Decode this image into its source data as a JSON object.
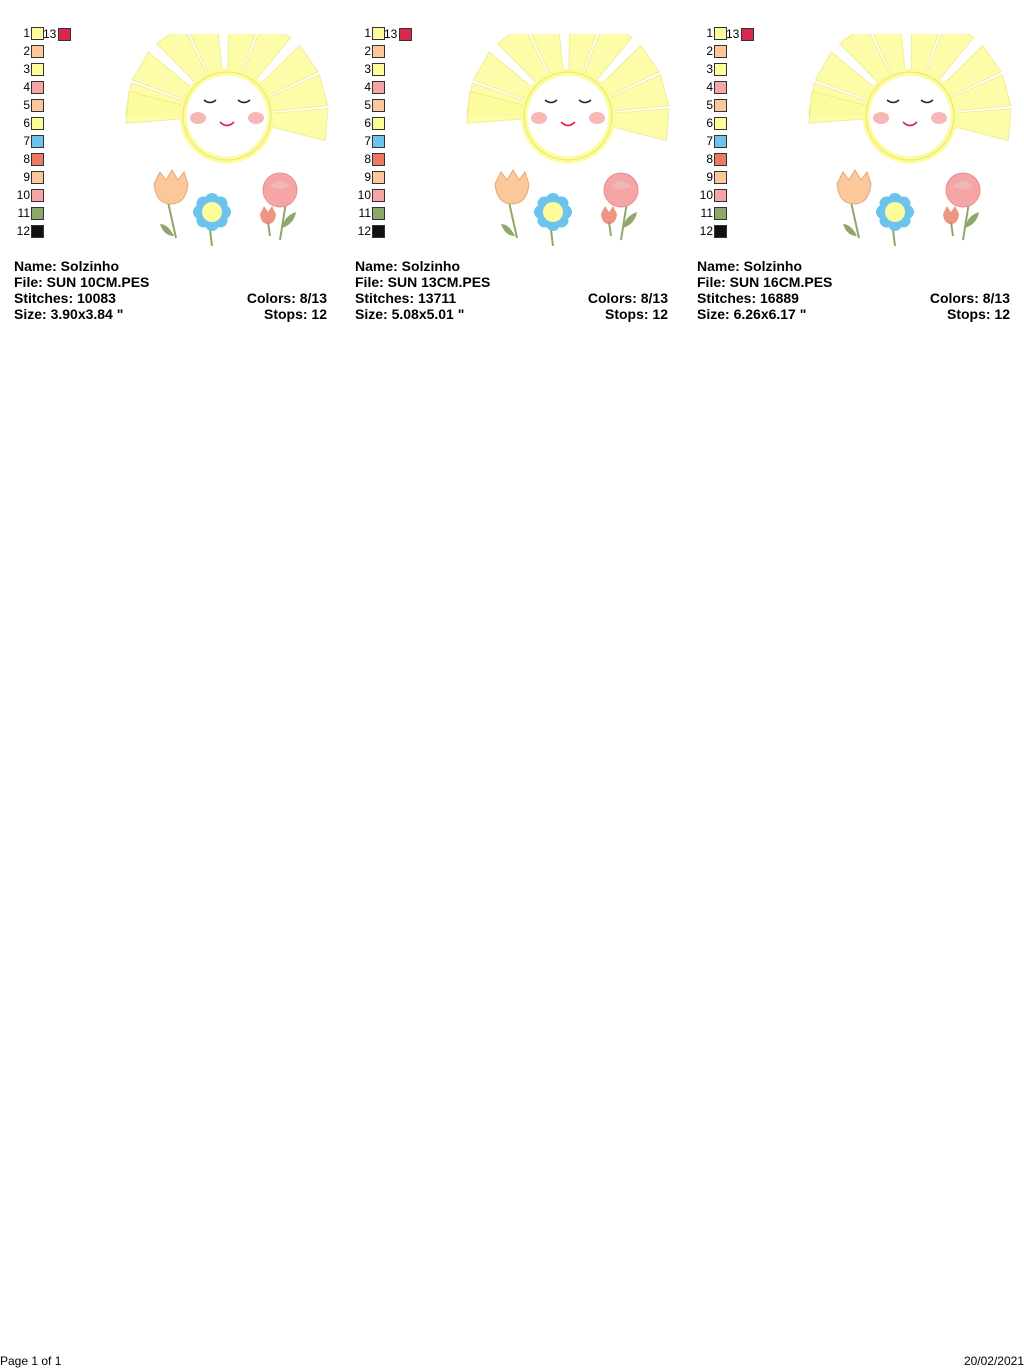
{
  "colors": {
    "yellow": "#fdfc9b",
    "peach": "#fcc89b",
    "pink": "#f5a5a5",
    "blue": "#6cc3ee",
    "salmon": "#ea7a64",
    "green": "#8ea86a",
    "black": "#111111",
    "red": "#d9264c"
  },
  "swatch_list": [
    {
      "num": "1",
      "color": "#fdfc9b"
    },
    {
      "num": "2",
      "color": "#fcc89b"
    },
    {
      "num": "3",
      "color": "#fdfc9b"
    },
    {
      "num": "4",
      "color": "#f5a5a5"
    },
    {
      "num": "5",
      "color": "#fcc89b"
    },
    {
      "num": "6",
      "color": "#fdfc9b"
    },
    {
      "num": "7",
      "color": "#6cc3ee"
    },
    {
      "num": "8",
      "color": "#ea7a64"
    },
    {
      "num": "9",
      "color": "#fcc89b"
    },
    {
      "num": "10",
      "color": "#f5a5a5"
    },
    {
      "num": "11",
      "color": "#8ea86a"
    },
    {
      "num": "12",
      "color": "#111111"
    }
  ],
  "swatch_extra": {
    "num": "13",
    "color": "#d9264c"
  },
  "designs": [
    {
      "name": "Name: Solzinho",
      "file": "File: SUN 10CM.PES",
      "stitches": "Stitches: 10083",
      "colors": "Colors: 8/13",
      "size": "Size: 3.90x3.84 \"",
      "stops": "Stops: 12"
    },
    {
      "name": "Name: Solzinho",
      "file": "File: SUN 13CM.PES",
      "stitches": "Stitches: 13711",
      "colors": "Colors: 8/13",
      "size": "Size: 5.08x5.01 \"",
      "stops": "Stops: 12"
    },
    {
      "name": "Name: Solzinho",
      "file": "File: SUN 16CM.PES",
      "stitches": "Stitches: 16889",
      "colors": "Colors: 8/13",
      "size": "Size: 6.26x6.17 \"",
      "stops": "Stops: 12"
    }
  ],
  "footer": {
    "page": "Page 1 of 1",
    "date": "20/02/2021"
  }
}
